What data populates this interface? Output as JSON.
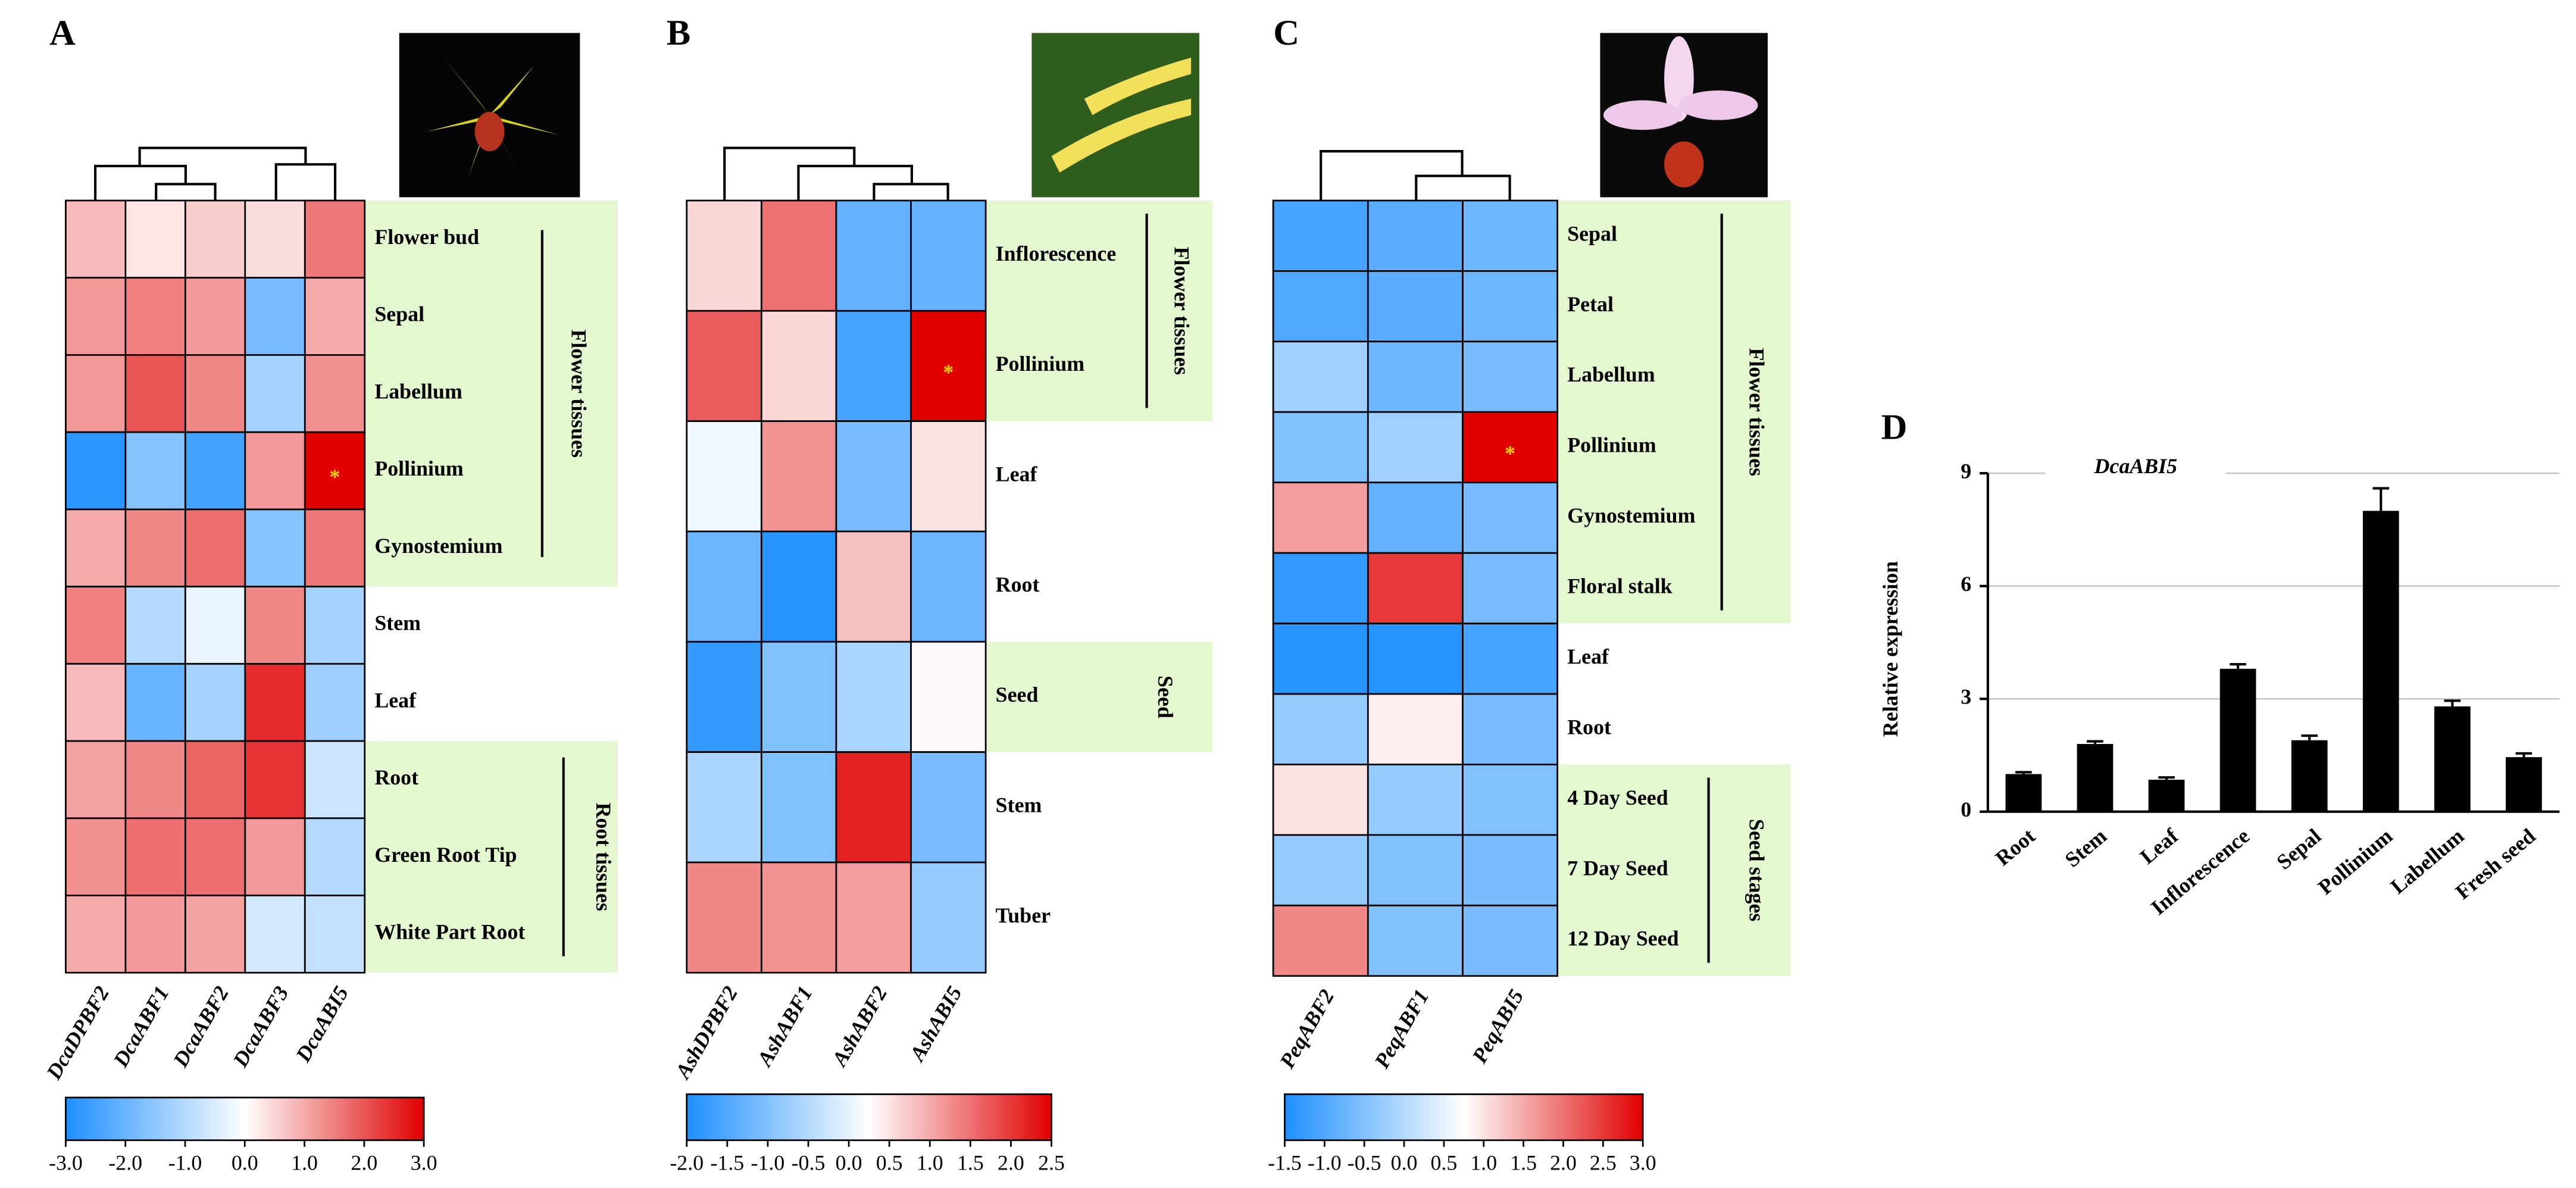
{
  "chart_data": [
    {
      "type": "heatmap",
      "panel": "A",
      "rows": [
        "Flower bud",
        "Sepal",
        "Labellum",
        "Pollinium",
        "Gynostemium",
        "Stem",
        "Leaf",
        "Root",
        "Green Root Tip",
        "White Part Root"
      ],
      "columns": [
        "DcaDPBF2",
        "DcaABF1",
        "DcaABF2",
        "DcaABF3",
        "DcaABI5"
      ],
      "values": [
        [
          0.8,
          0.3,
          0.6,
          0.4,
          1.6
        ],
        [
          1.2,
          1.5,
          1.2,
          -1.8,
          1.0
        ],
        [
          1.2,
          2.0,
          1.4,
          -1.2,
          1.3
        ],
        [
          -2.8,
          -1.6,
          -2.5,
          1.2,
          3.0
        ],
        [
          1.0,
          1.4,
          1.7,
          -1.6,
          1.6
        ],
        [
          1.5,
          -1.0,
          -0.3,
          1.4,
          -1.2
        ],
        [
          0.8,
          -2.0,
          -1.2,
          2.5,
          -1.3
        ],
        [
          1.1,
          1.4,
          1.8,
          2.4,
          -0.7
        ],
        [
          1.3,
          1.7,
          1.7,
          1.2,
          -1.0
        ],
        [
          1.0,
          1.2,
          1.1,
          -0.6,
          -0.8
        ]
      ],
      "clim": [
        -3,
        3
      ],
      "colorbar_ticks": [
        {
          "value": -3,
          "label": "-3.0"
        },
        {
          "value": -2,
          "label": "-2.0"
        },
        {
          "value": -1,
          "label": "-1.0"
        },
        {
          "value": 0,
          "label": "0.0"
        },
        {
          "value": 1,
          "label": "1.0"
        },
        {
          "value": 2,
          "label": "2.0"
        },
        {
          "value": 3,
          "label": "3.0"
        }
      ],
      "colormap": [
        "#1e8fff",
        "#ffffff",
        "#e00000"
      ],
      "groups": [
        {
          "label": "Flower tissues",
          "from": "Flower bud",
          "to": "Gynostemium"
        },
        {
          "label": "Root tissues",
          "from": "Root",
          "to": "White Part Root"
        }
      ],
      "annotations": [
        {
          "text": "*",
          "row": "Pollinium",
          "column": "DcaABI5",
          "color": "#ffd700"
        }
      ]
    },
    {
      "type": "heatmap",
      "panel": "B",
      "rows": [
        "Inflorescence",
        "Pollinium",
        "Leaf",
        "Root",
        "Seed",
        "Stem",
        "Tuber"
      ],
      "columns": [
        "AshDPBF2",
        "AshABF1",
        "AshABF2",
        "AshABI5"
      ],
      "values": [
        [
          0.6,
          1.5,
          -1.3,
          -1.3
        ],
        [
          1.7,
          0.6,
          -1.6,
          2.5
        ],
        [
          0.1,
          1.2,
          -1.1,
          0.5
        ],
        [
          -1.2,
          -1.9,
          0.8,
          -1.2
        ],
        [
          -1.8,
          -1.0,
          -0.6,
          0.3
        ],
        [
          -0.6,
          -1.0,
          2.2,
          -1.1
        ],
        [
          1.3,
          1.2,
          1.1,
          -0.8
        ]
      ],
      "clim": [
        -2,
        2.5
      ],
      "colorbar_ticks": [
        {
          "value": -2,
          "label": "-2.0"
        },
        {
          "value": -1.5,
          "label": "-1.5"
        },
        {
          "value": -1,
          "label": "-1.0"
        },
        {
          "value": -0.5,
          "label": "-0.5"
        },
        {
          "value": 0,
          "label": "0.0"
        },
        {
          "value": 0.5,
          "label": "0.5"
        },
        {
          "value": 1,
          "label": "1.0"
        },
        {
          "value": 1.5,
          "label": "1.5"
        },
        {
          "value": 2,
          "label": "2.0"
        },
        {
          "value": 2.5,
          "label": "2.5"
        }
      ],
      "colormap": [
        "#1e8fff",
        "#ffffff",
        "#e00000"
      ],
      "groups": [
        {
          "label": "Flower tissues",
          "from": "Inflorescence",
          "to": "Pollinium"
        },
        {
          "label": "Seed",
          "from": "Seed",
          "to": "Seed"
        }
      ],
      "annotations": [
        {
          "text": "*",
          "row": "Pollinium",
          "column": "AshABI5",
          "color": "#ffd700"
        }
      ]
    },
    {
      "type": "heatmap",
      "panel": "C",
      "rows": [
        "Sepal",
        "Petal",
        "Labellum",
        "Pollinium",
        "Gynostemium",
        "Floral stalk",
        "Leaf",
        "Root",
        "4 Day Seed",
        "7 Day Seed",
        "12 Day Seed"
      ],
      "columns": [
        "PeqABF2",
        "PeqABF1",
        "PeqABI5"
      ],
      "values": [
        [
          -1.1,
          -0.9,
          -0.7
        ],
        [
          -1.0,
          -0.9,
          -0.7
        ],
        [
          -0.2,
          -0.7,
          -0.6
        ],
        [
          -0.5,
          -0.2,
          3.0
        ],
        [
          1.6,
          -0.8,
          -0.6
        ],
        [
          -1.3,
          2.5,
          -0.6
        ],
        [
          -1.4,
          -1.4,
          -1.1
        ],
        [
          -0.3,
          0.9,
          -0.6
        ],
        [
          1.0,
          -0.3,
          -0.5
        ],
        [
          -0.3,
          -0.5,
          -0.6
        ],
        [
          1.8,
          -0.5,
          -0.6
        ]
      ],
      "clim": [
        -1.5,
        3
      ],
      "colorbar_ticks": [
        {
          "value": -1.5,
          "label": "-1.5"
        },
        {
          "value": -1,
          "label": "-1.0"
        },
        {
          "value": -0.5,
          "label": "-0.5"
        },
        {
          "value": 0,
          "label": "0.0"
        },
        {
          "value": 0.5,
          "label": "0.5"
        },
        {
          "value": 1,
          "label": "1.0"
        },
        {
          "value": 1.5,
          "label": "1.5"
        },
        {
          "value": 2,
          "label": "2.0"
        },
        {
          "value": 2.5,
          "label": "2.5"
        },
        {
          "value": 3,
          "label": "3.0"
        }
      ],
      "colormap": [
        "#1e8fff",
        "#ffffff",
        "#e00000"
      ],
      "groups": [
        {
          "label": "Flower tissues",
          "from": "Sepal",
          "to": "Floral stalk"
        },
        {
          "label": "Seed stages",
          "from": "4 Day Seed",
          "to": "12 Day Seed"
        }
      ],
      "annotations": [
        {
          "text": "*",
          "row": "Pollinium",
          "column": "PeqABI5",
          "color": "#ffd700"
        }
      ]
    },
    {
      "type": "bar",
      "panel": "D",
      "title": "DcaABI5",
      "ylabel": "Relative expression",
      "categories": [
        "Root",
        "Stem",
        "Leaf",
        "Inflorescence",
        "Sepal",
        "Pollinium",
        "Labellum",
        "Fresh seed"
      ],
      "values": [
        1.0,
        1.8,
        0.85,
        3.8,
        1.9,
        8.0,
        2.8,
        1.45
      ],
      "errors": [
        0.05,
        0.07,
        0.06,
        0.12,
        0.12,
        0.6,
        0.15,
        0.1
      ],
      "color": "#000000",
      "ylim": [
        0,
        9
      ],
      "yticks": [
        0,
        3,
        6,
        9
      ],
      "grid": true
    }
  ]
}
